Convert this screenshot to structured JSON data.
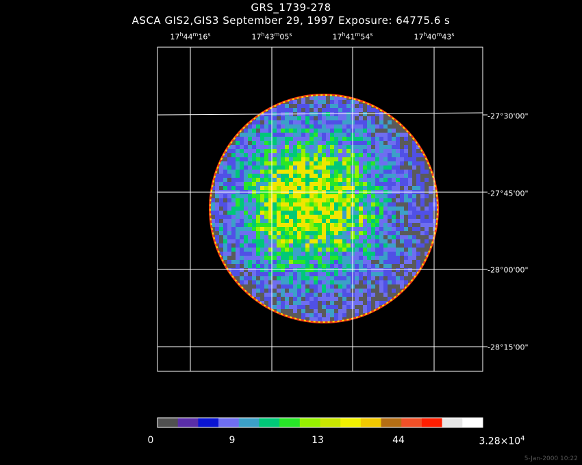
{
  "title": "GRS_1739-278",
  "subtitle": "ASCA GIS2,GIS3 September 29, 1997 Exposure: 64775.6 s",
  "ra_ticks": [
    {
      "h": "17",
      "m": "44",
      "s": "16"
    },
    {
      "h": "17",
      "m": "43",
      "s": "05"
    },
    {
      "h": "17",
      "m": "41",
      "s": "54"
    },
    {
      "h": "17",
      "m": "40",
      "s": "43"
    }
  ],
  "dec_ticks": [
    "-27°30'00\"",
    "-27°45'00\"",
    "-28°00'00\"",
    "-28°15'00\""
  ],
  "colorbar": {
    "colors": [
      "#505050",
      "#5a2ea8",
      "#0a14d2",
      "#6e6ef0",
      "#3ca0c8",
      "#00c878",
      "#28e628",
      "#96f000",
      "#c8e600",
      "#f0f000",
      "#f0c800",
      "#b46e14",
      "#f05028",
      "#ff1e00",
      "#e6e6e6",
      "#ffffff"
    ],
    "labels": {
      "l0": "0",
      "l1": "9",
      "l2": "13",
      "l3": "44",
      "l4_mant": "3.28×10",
      "l4_exp": "4"
    }
  },
  "footer": "5-Jan-2000 10:22"
}
